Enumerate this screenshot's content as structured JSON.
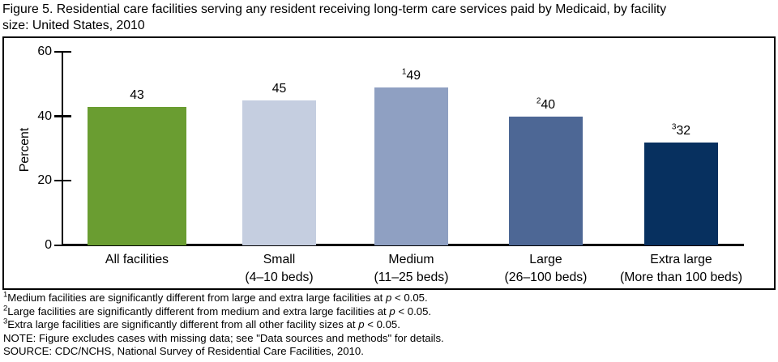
{
  "figure": {
    "title_line1": "Figure 5. Residential care facilities serving any resident receiving long-term care services paid by Medicaid, by facility",
    "title_line2": "size: United States, 2010"
  },
  "chart_data": {
    "type": "bar",
    "title": "Figure 5. Residential care facilities serving any resident receiving long-term care services paid by Medicaid, by facility size: United States, 2010",
    "xlabel": "",
    "ylabel": "Percent",
    "ylim": [
      0,
      60
    ],
    "yticks": [
      0,
      20,
      40,
      60
    ],
    "grid": false,
    "legend": "none",
    "categories": [
      "All facilities",
      "Small (4–10 beds)",
      "Medium (11–25 beds)",
      "Large (26–100 beds)",
      "Extra large (More than 100 beds)"
    ],
    "category_lines": [
      [
        "All facilities"
      ],
      [
        "Small",
        "(4–10 beds)"
      ],
      [
        "Medium",
        "(11–25 beds)"
      ],
      [
        "Large",
        "(26–100 beds)"
      ],
      [
        "Extra large",
        "(More than 100 beds)"
      ]
    ],
    "values": [
      43,
      45,
      49,
      40,
      32
    ],
    "value_label_sups": [
      "",
      "",
      "1",
      "2",
      "3"
    ],
    "bar_colors": [
      "#6a9d31",
      "#c5cee0",
      "#8fa0c2",
      "#4d6795",
      "#07305f"
    ]
  },
  "footnotes": [
    {
      "sup": "1",
      "before": "Medium facilities are significantly different from large and extra large facilities at ",
      "italic": "p",
      "after": " < 0.05."
    },
    {
      "sup": "2",
      "before": "Large facilities are significantly different from medium and extra large facilities at ",
      "italic": "p",
      "after": " < 0.05."
    },
    {
      "sup": "3",
      "before": "Extra large facilities are significantly different from all other facility sizes at ",
      "italic": "p",
      "after": " < 0.05."
    },
    {
      "sup": "",
      "before": "NOTE: Figure excludes cases with missing data; see \"Data sources and methods\" for details.",
      "italic": "",
      "after": ""
    },
    {
      "sup": "",
      "before": "SOURCE: CDC/NCHS, National Survey of Residential Care Facilities, 2010.",
      "italic": "",
      "after": ""
    }
  ]
}
